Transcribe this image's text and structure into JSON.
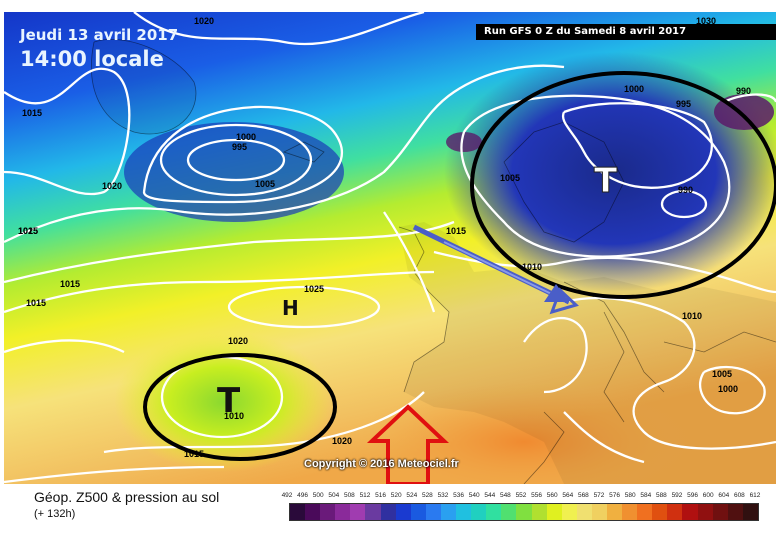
{
  "header": {
    "date": "Jeudi 13 avril 2017",
    "time": "14:00 locale",
    "run": "Run GFS 0 Z du Samedi 8 avril 2017"
  },
  "map": {
    "copyright": "Copyright © 2016 Meteociel.fr",
    "high_symbol": "H",
    "low_symbol_scandinavia": "T",
    "low_symbol_atlantic": "T",
    "isobar_labels": [
      "1020",
      "1015",
      "1015",
      "1000",
      "995",
      "1005",
      "1020",
      "1025",
      "1015",
      "1015",
      "1025",
      "1020",
      "1010",
      "1015",
      "1020",
      "1000",
      "995",
      "990",
      "1005",
      "990",
      "1015",
      "1010",
      "1010",
      "1005",
      "1000",
      "1030"
    ],
    "colors": {
      "low_circle": "#000000",
      "arrow_blue": "#4a5ec8",
      "arrow_red": "#e01010",
      "isobar": "#ffffff"
    }
  },
  "footer": {
    "title": "Géop. Z500 & pression au sol",
    "subtitle": "(+ 132h)",
    "legend_values": [
      "492",
      "496",
      "500",
      "504",
      "508",
      "512",
      "516",
      "520",
      "524",
      "528",
      "532",
      "536",
      "540",
      "544",
      "548",
      "552",
      "556",
      "560",
      "564",
      "568",
      "572",
      "576",
      "580",
      "584",
      "588",
      "592",
      "596",
      "600",
      "604",
      "608",
      "612"
    ],
    "legend_colors": [
      "#2a0a3a",
      "#4a0a5a",
      "#6a1a7a",
      "#8a2a9a",
      "#a03cb0",
      "#6a3aa0",
      "#3030a0",
      "#1a3ad0",
      "#1a5ae0",
      "#2a7af0",
      "#2aa0f0",
      "#20c0e0",
      "#20d0c0",
      "#30e0a0",
      "#50e070",
      "#80e040",
      "#b0e030",
      "#e0f020",
      "#f0f050",
      "#f0e070",
      "#f0d060",
      "#f0b040",
      "#f09030",
      "#f07020",
      "#e05010",
      "#d03010",
      "#b01010",
      "#901010",
      "#701010",
      "#501010",
      "#301010"
    ]
  }
}
